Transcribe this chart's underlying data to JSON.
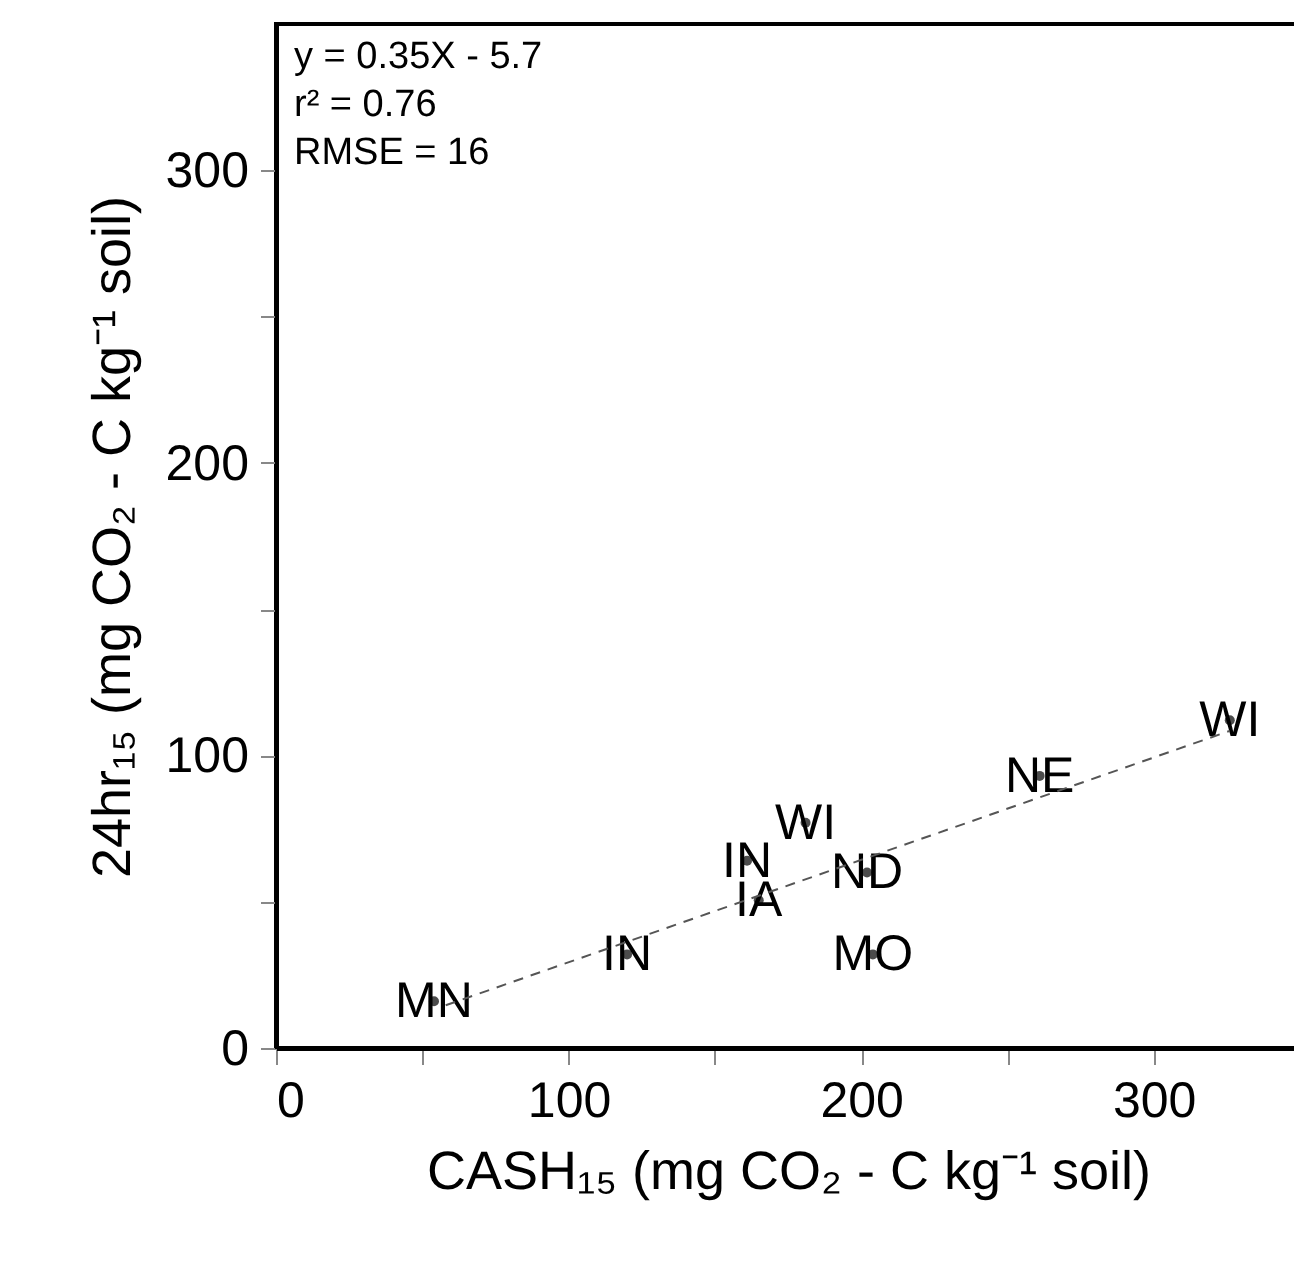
{
  "chart_data": {
    "type": "scatter",
    "xlabel": "CASH₁₅ (mg CO₂ - C kg⁻¹ soil)",
    "ylabel": "24hr₁₅ (mg CO₂ - C kg⁻¹ soil)",
    "xlim": [
      0,
      350
    ],
    "ylim": [
      0,
      350
    ],
    "xticks": [
      0,
      {
        "value": 50,
        "label": null
      },
      100,
      {
        "value": 150,
        "label": null
      },
      200,
      {
        "value": 250,
        "label": null
      },
      300
    ],
    "yticks": [
      0,
      {
        "value": 50,
        "label": null
      },
      100,
      {
        "value": 150,
        "label": null
      },
      200,
      {
        "value": 250,
        "label": null
      },
      300
    ],
    "marker": "circle",
    "series": [
      {
        "type": "scatter",
        "color": "#000000",
        "x": [
          54,
          120,
          165,
          161,
          181,
          202,
          204,
          261,
          326
        ],
        "values": [
          16,
          32,
          50.5,
          64,
          77,
          60,
          32,
          93,
          112
        ],
        "value_labels": [
          "MN",
          "IN",
          "IA",
          "IN",
          "WI",
          "ND",
          "MO",
          "NE",
          "WI"
        ]
      },
      {
        "type": "line",
        "marker": "none",
        "color": "#555555",
        "line_style": "dashed",
        "x": [
          58,
          326
        ],
        "values": [
          14.6,
          108.4
        ]
      }
    ],
    "annotations": [
      "y = 0.35X - 5.7",
      "r² = 0.76",
      "RMSE = 16"
    ]
  }
}
